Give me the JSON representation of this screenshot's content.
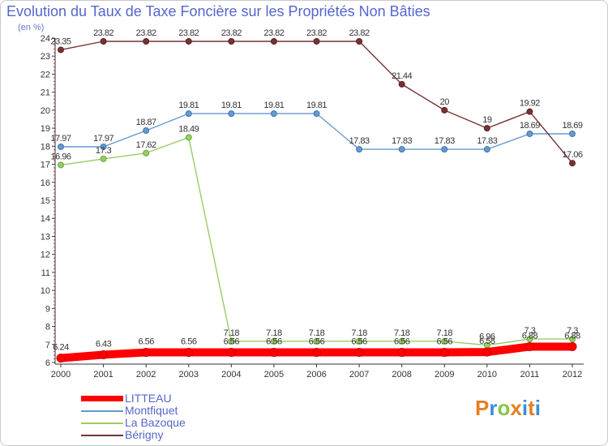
{
  "title": "Evolution du Taux de Taxe Foncière sur les Propriétés Non Bâties",
  "subtitle": "(en %)",
  "logo": {
    "text": "Proxiti",
    "colors": [
      "#e67e22",
      "#3a8fd6",
      "#8bc34a",
      "#e67e22",
      "#3a8fd6",
      "#e67e22",
      "#3a8fd6"
    ]
  },
  "colors": {
    "title": "#5566cc",
    "axis": "#333333",
    "grid": "#e4e4e4"
  },
  "chart_data": {
    "type": "line",
    "title": "Evolution du Taux de Taxe Foncière sur les Propriétés Non Bâties",
    "ylabel": "(en %)",
    "xlabel": "",
    "ylim": [
      6,
      24
    ],
    "y_ticks": [
      6,
      7,
      8,
      9,
      10,
      11,
      12,
      13,
      14,
      15,
      16,
      17,
      18,
      19,
      20,
      21,
      22,
      23,
      24
    ],
    "categories": [
      "2000",
      "2001",
      "2002",
      "2003",
      "2004",
      "2005",
      "2006",
      "2007",
      "2008",
      "2009",
      "2010",
      "2011",
      "2012"
    ],
    "grid": false,
    "legend": "bottom-left",
    "series": [
      {
        "name": "LITTEAU",
        "color": "#ff0000",
        "values": [
          6.24,
          6.43,
          6.56,
          6.56,
          6.56,
          6.56,
          6.56,
          6.56,
          6.56,
          6.56,
          6.58,
          6.88,
          6.88
        ],
        "labels": [
          "6.24",
          "6.43",
          "6.56",
          "6.56",
          "6.56",
          "6.56",
          "6.56",
          "6.56",
          "6.56",
          "6.56",
          "6.58",
          "6.88",
          "6.88"
        ]
      },
      {
        "name": "Montfiquet",
        "color": "#6699cc",
        "values": [
          17.97,
          17.97,
          18.87,
          19.81,
          19.81,
          19.81,
          19.81,
          17.83,
          17.83,
          17.83,
          17.83,
          18.69,
          18.69
        ],
        "labels": [
          "17.97",
          "17.97",
          "18.87",
          "19.81",
          "19.81",
          "19.81",
          "19.81",
          "17.83",
          "17.83",
          "17.83",
          "17.83",
          "18.69",
          "18.69"
        ]
      },
      {
        "name": "La Bazoque",
        "color": "#99cc66",
        "values": [
          16.96,
          17.3,
          17.62,
          18.49,
          7.18,
          7.18,
          7.18,
          7.18,
          7.18,
          7.18,
          6.96,
          7.3,
          7.3
        ],
        "labels": [
          "16.96",
          "17.3",
          "17.62",
          "18.49",
          "7.18",
          "7.18",
          "7.18",
          "7.18",
          "7.18",
          "7.18",
          "6.96",
          "7.3",
          "7.3"
        ]
      },
      {
        "name": "Bérigny",
        "color": "#773333",
        "values": [
          23.35,
          23.82,
          23.82,
          23.82,
          23.82,
          23.82,
          23.82,
          23.82,
          21.44,
          20,
          19,
          19.92,
          17.06
        ],
        "labels": [
          "23.35",
          "23.82",
          "23.82",
          "23.82",
          "23.82",
          "23.82",
          "23.82",
          "23.82",
          "21.44",
          "20",
          "19",
          "19.92",
          "17.06"
        ]
      }
    ]
  }
}
